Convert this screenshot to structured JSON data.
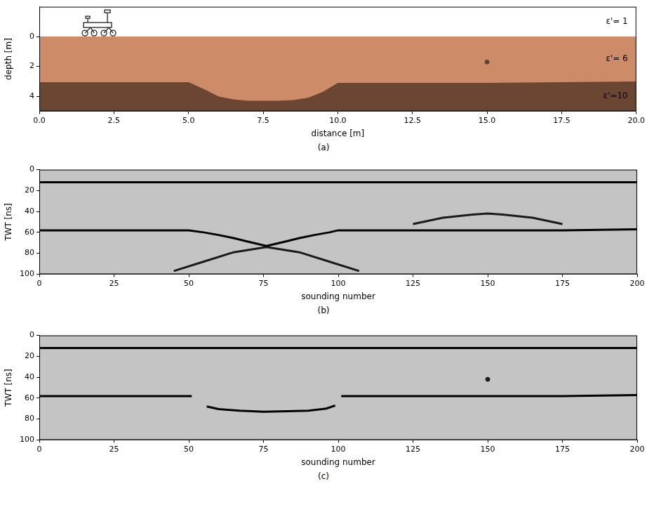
{
  "chart_data": [
    {
      "type": "area",
      "caption": "(a)",
      "x_label": "distance [m]",
      "y_label": "depth [m]",
      "xlim": [
        0,
        20
      ],
      "xticks": [
        {
          "value": 0,
          "label": "0.0"
        },
        {
          "value": 2.5,
          "label": "2.5"
        },
        {
          "value": 5,
          "label": "5.0"
        },
        {
          "value": 7.5,
          "label": "7.5"
        },
        {
          "value": 10,
          "label": "10.0"
        },
        {
          "value": 12.5,
          "label": "12.5"
        },
        {
          "value": 15,
          "label": "15.0"
        },
        {
          "value": 17.5,
          "label": "17.5"
        },
        {
          "value": 20,
          "label": "20.0"
        }
      ],
      "ylim": [
        5,
        -2
      ],
      "yticks": [
        0,
        2,
        4
      ],
      "layers": [
        {
          "name": "ε'= 1",
          "color": "#ffffff"
        },
        {
          "name": "ε'= 6",
          "color": "#cd8b67",
          "top_x": [
            0,
            20
          ],
          "top_depth": [
            0,
            0
          ]
        },
        {
          "name": "ε'=10",
          "color": "#6b4633",
          "top_x": [
            0,
            5,
            5.5,
            6,
            6.5,
            7,
            7.5,
            8,
            8.5,
            9,
            9.5,
            10,
            12.5,
            15,
            17.5,
            20
          ],
          "top_depth": [
            3.05,
            3.05,
            3.5,
            4.0,
            4.2,
            4.3,
            4.3,
            4.3,
            4.25,
            4.1,
            3.7,
            3.1,
            3.1,
            3.1,
            3.05,
            3.0
          ]
        }
      ],
      "points": {
        "x": [
          15
        ],
        "y": [
          1.7
        ],
        "color": "#5c4535",
        "marker": "circle"
      }
    },
    {
      "type": "line",
      "caption": "(b)",
      "x_label": "sounding number",
      "y_label": "TWT [ns]",
      "xlim": [
        0,
        200
      ],
      "xticks": [
        0,
        25,
        50,
        75,
        100,
        125,
        150,
        175,
        200
      ],
      "ylim": [
        100,
        0
      ],
      "yticks": [
        0,
        20,
        40,
        60,
        80,
        100
      ],
      "series": [
        {
          "x": [
            0,
            200
          ],
          "values": [
            12,
            12
          ],
          "color": "#000000"
        },
        {
          "x": [
            0,
            25,
            50,
            55,
            60,
            65,
            70,
            76,
            82,
            87,
            92,
            97,
            100,
            125,
            150,
            175,
            200
          ],
          "values": [
            58,
            58,
            58,
            60,
            62.5,
            65.5,
            69,
            73,
            69,
            65.5,
            62.5,
            60,
            58,
            58,
            58,
            58,
            57
          ],
          "color": "#000000"
        },
        {
          "x": [
            45,
            55,
            65,
            76,
            87,
            97,
            107
          ],
          "values": [
            97,
            88,
            79,
            74,
            79,
            88,
            97
          ],
          "color": "#1a1a1a"
        },
        {
          "x": [
            125,
            135,
            145,
            150,
            155,
            165,
            175
          ],
          "values": [
            52,
            46,
            43,
            42,
            43,
            46,
            52
          ],
          "color": "#1a1a1a"
        }
      ]
    },
    {
      "type": "line",
      "caption": "(c)",
      "x_label": "sounding number",
      "y_label": "TWT [ns]",
      "xlim": [
        0,
        200
      ],
      "xticks": [
        0,
        25,
        50,
        75,
        100,
        125,
        150,
        175,
        200
      ],
      "ylim": [
        100,
        0
      ],
      "yticks": [
        0,
        20,
        40,
        60,
        80,
        100
      ],
      "series": [
        {
          "x": [
            0,
            200
          ],
          "values": [
            12,
            12
          ],
          "color": "#000000"
        },
        {
          "x": [
            0,
            25,
            51,
            52,
            56,
            60,
            67,
            75,
            83,
            90,
            96,
            99,
            100,
            101,
            125,
            150,
            175,
            200
          ],
          "values": [
            58,
            58,
            58,
            null,
            68,
            70.5,
            72,
            73,
            72.5,
            72,
            70,
            67,
            null,
            58,
            58,
            58,
            58,
            57
          ],
          "color": "#000000"
        },
        {
          "type": "scatter",
          "x": [
            150
          ],
          "values": [
            42
          ],
          "color": "#1a1a1a",
          "marker": "circle"
        }
      ]
    }
  ]
}
